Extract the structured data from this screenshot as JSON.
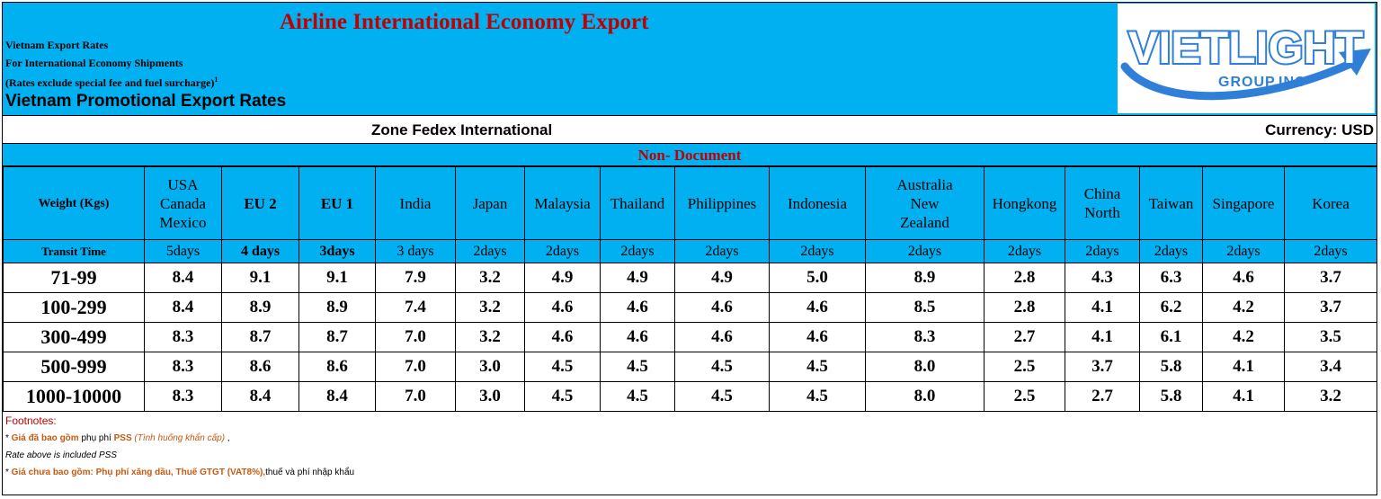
{
  "header": {
    "title": "Airline  International Economy Export",
    "subtitle_1": "Vietnam Export Rates",
    "subtitle_2": "For International Economy Shipments",
    "subtitle_3": "(Rates exclude special fee and fuel surcharge)",
    "subtitle_3_sup": "1",
    "promo": "Vietnam Promotional Export Rates",
    "bg_color": "#00b0f0",
    "title_color": "#c00000"
  },
  "logo": {
    "text_main": "VIETLIGHT",
    "text_sub": "GROUP.INC",
    "color": "#2f7fd8"
  },
  "zone": {
    "title": "Zone Fedex International",
    "currency": "Currency: USD"
  },
  "section": {
    "label": "Non- Document"
  },
  "table": {
    "weight_label": "Weight (Kgs)",
    "transit_label": "Transit Time",
    "columns": [
      {
        "name": "USA\nCanada\nMexico",
        "transit": "5days",
        "bold": false
      },
      {
        "name": "EU 2",
        "transit": "4 days",
        "bold": true
      },
      {
        "name": "EU 1",
        "transit": "3days",
        "bold": true
      },
      {
        "name": "India",
        "transit": "3 days",
        "bold": false
      },
      {
        "name": "Japan",
        "transit": "2days",
        "bold": false
      },
      {
        "name": "Malaysia",
        "transit": "2days",
        "bold": false
      },
      {
        "name": "Thailand",
        "transit": "2days",
        "bold": false
      },
      {
        "name": "Philippines",
        "transit": "2days",
        "bold": false
      },
      {
        "name": "Indonesia",
        "transit": "2days",
        "bold": false
      },
      {
        "name": "Australia\nNew\nZealand",
        "transit": "2days",
        "bold": false
      },
      {
        "name": "Hongkong",
        "transit": "2days",
        "bold": false
      },
      {
        "name": "China\nNorth",
        "transit": "2days",
        "bold": false
      },
      {
        "name": "Taiwan",
        "transit": "2days",
        "bold": false
      },
      {
        "name": "Singapore",
        "transit": "2days",
        "bold": false
      },
      {
        "name": "Korea",
        "transit": "2days",
        "bold": false
      }
    ],
    "rows": [
      {
        "weight": "71-99",
        "values": [
          "8.4",
          "9.1",
          "9.1",
          "7.9",
          "3.2",
          "4.9",
          "4.9",
          "4.9",
          "5.0",
          "8.9",
          "2.8",
          "4.3",
          "6.3",
          "4.6",
          "3.7"
        ]
      },
      {
        "weight": "100-299",
        "values": [
          "8.4",
          "8.9",
          "8.9",
          "7.4",
          "3.2",
          "4.6",
          "4.6",
          "4.6",
          "4.6",
          "8.5",
          "2.8",
          "4.1",
          "6.2",
          "4.2",
          "3.7"
        ]
      },
      {
        "weight": "300-499",
        "values": [
          "8.3",
          "8.7",
          "8.7",
          "7.0",
          "3.2",
          "4.6",
          "4.6",
          "4.6",
          "4.6",
          "8.3",
          "2.7",
          "4.1",
          "6.1",
          "4.2",
          "3.5"
        ]
      },
      {
        "weight": "500-999",
        "values": [
          "8.3",
          "8.6",
          "8.6",
          "7.0",
          "3.0",
          "4.5",
          "4.5",
          "4.5",
          "4.5",
          "8.0",
          "2.5",
          "3.7",
          "5.8",
          "4.1",
          "3.4"
        ]
      },
      {
        "weight": "1000-10000",
        "values": [
          "8.3",
          "8.4",
          "8.4",
          "7.0",
          "3.0",
          "4.5",
          "4.5",
          "4.5",
          "4.5",
          "8.0",
          "2.5",
          "2.7",
          "5.8",
          "4.1",
          "3.2"
        ]
      }
    ]
  },
  "footnotes": {
    "title": "Footnotes:",
    "line1_star": "* ",
    "line1_red": "Giá đã bao gồm",
    "line1_mid": " phụ phí ",
    "line1_pss": "PSS",
    "line1_it": " (Tình huống khẩn cấp)",
    "line1_end": " ,",
    "line2": "Rate above is included PSS",
    "line3_star": "* ",
    "line3_red": "Giá chưa bao gồm: Phụ phí xăng dầu, Thuế GTGT (VAT8%),",
    "line3_end": "thuế và phí nhập khẩu"
  }
}
